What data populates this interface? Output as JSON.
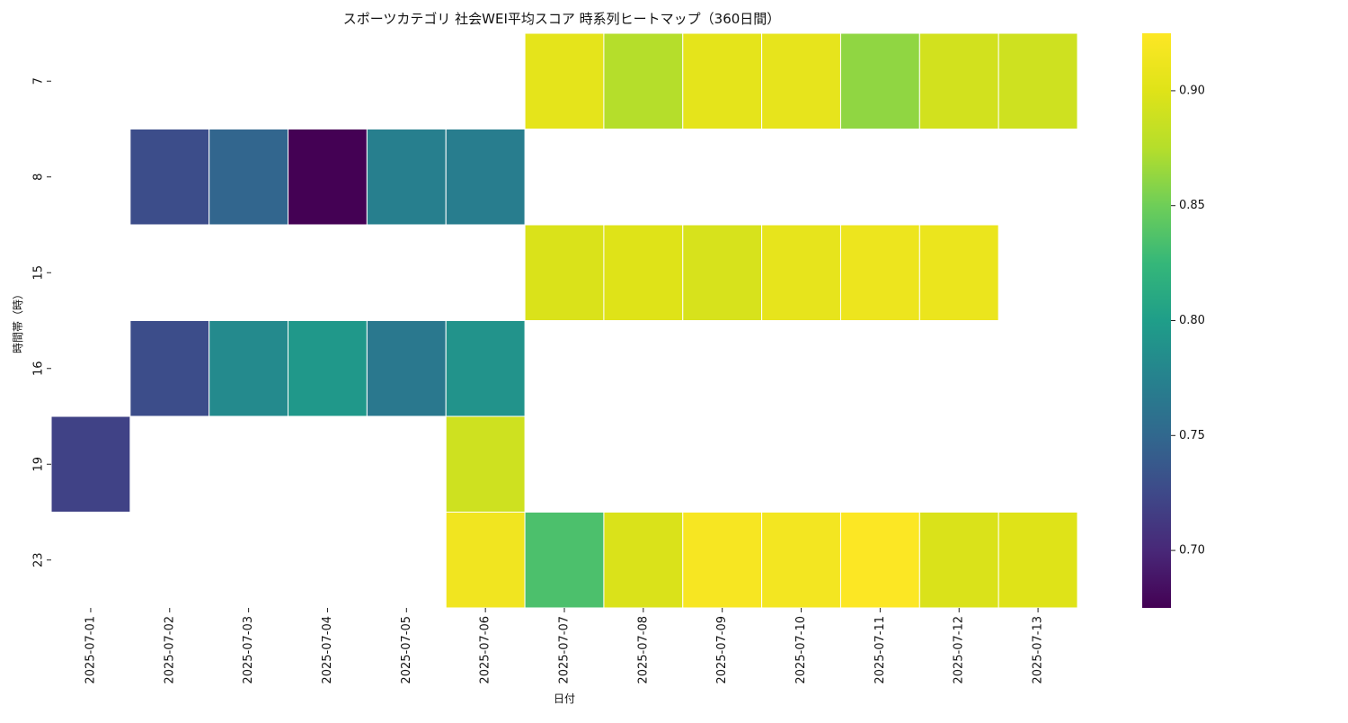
{
  "chart_data": {
    "type": "heatmap",
    "title": "スポーツカテゴリ 社会WEI平均スコア 時系列ヒートマップ（360日間）",
    "xlabel": "日付",
    "ylabel": "時間帯（時）",
    "colormap": "viridis",
    "x": [
      "2025-07-01",
      "2025-07-02",
      "2025-07-03",
      "2025-07-04",
      "2025-07-05",
      "2025-07-06",
      "2025-07-07",
      "2025-07-08",
      "2025-07-09",
      "2025-07-10",
      "2025-07-11",
      "2025-07-12",
      "2025-07-13"
    ],
    "y": [
      "7",
      "8",
      "15",
      "16",
      "19",
      "23"
    ],
    "values": [
      [
        null,
        null,
        null,
        null,
        null,
        null,
        0.905,
        0.875,
        0.905,
        0.907,
        0.862,
        0.892,
        0.89
      ],
      [
        null,
        0.728,
        0.748,
        0.675,
        0.772,
        0.77,
        null,
        null,
        null,
        null,
        null,
        null,
        null
      ],
      [
        null,
        null,
        null,
        null,
        null,
        null,
        0.897,
        0.9,
        0.895,
        0.907,
        0.912,
        0.91,
        null
      ],
      [
        null,
        0.728,
        0.782,
        0.795,
        0.765,
        0.79,
        null,
        null,
        null,
        null,
        null,
        null,
        null
      ],
      [
        0.72,
        null,
        null,
        null,
        null,
        0.89,
        null,
        null,
        null,
        null,
        null,
        null,
        null
      ],
      [
        null,
        null,
        null,
        null,
        null,
        0.915,
        0.835,
        0.897,
        0.92,
        0.917,
        0.924,
        0.897,
        0.9
      ]
    ],
    "colorbar": {
      "range": [
        0.675,
        0.925
      ],
      "ticks": [
        "0.70",
        "0.75",
        "0.80",
        "0.85",
        "0.90"
      ]
    }
  }
}
